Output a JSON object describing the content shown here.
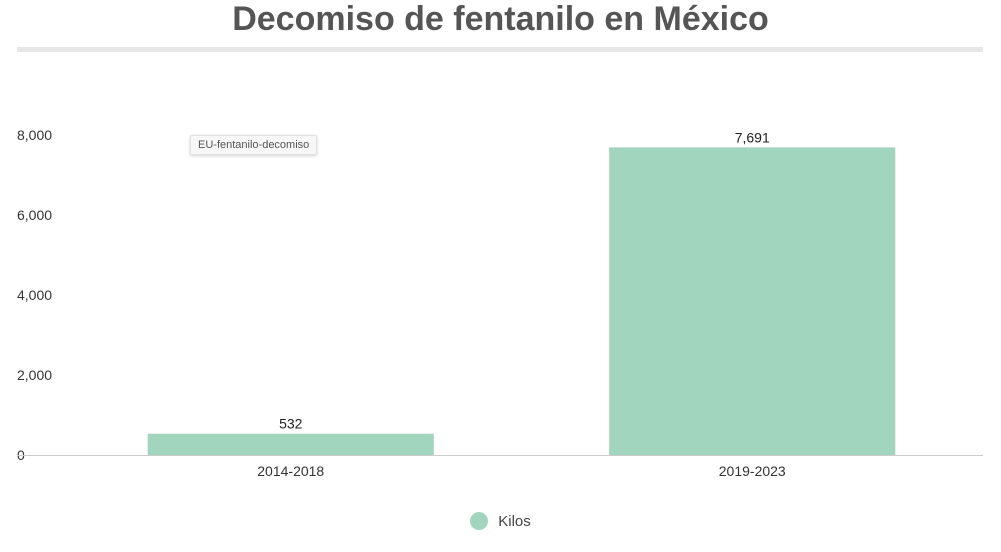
{
  "page": {
    "title": "Decomiso de fentanilo en México",
    "tooltip": "EU-fentanilo-decomiso"
  },
  "colors": {
    "bar": "#a2d5be",
    "axis_text": "#333333",
    "baseline": "#cccccc"
  },
  "chart_data": {
    "type": "bar",
    "title": "Decomiso de fentanilo en México",
    "xlabel": "",
    "ylabel": "",
    "categories": [
      "2014-2018",
      "2019-2023"
    ],
    "series": [
      {
        "name": "Kilos",
        "values": [
          532,
          7691
        ]
      }
    ],
    "data_labels": [
      "532",
      "7,691"
    ],
    "y_ticks": [
      0,
      2000,
      4000,
      6000,
      8000
    ],
    "y_tick_labels": [
      "0",
      "2,000",
      "4,000",
      "6,000",
      "8,000"
    ],
    "ylim": [
      0,
      8000
    ],
    "grid": false,
    "legend": "bottom-center"
  }
}
